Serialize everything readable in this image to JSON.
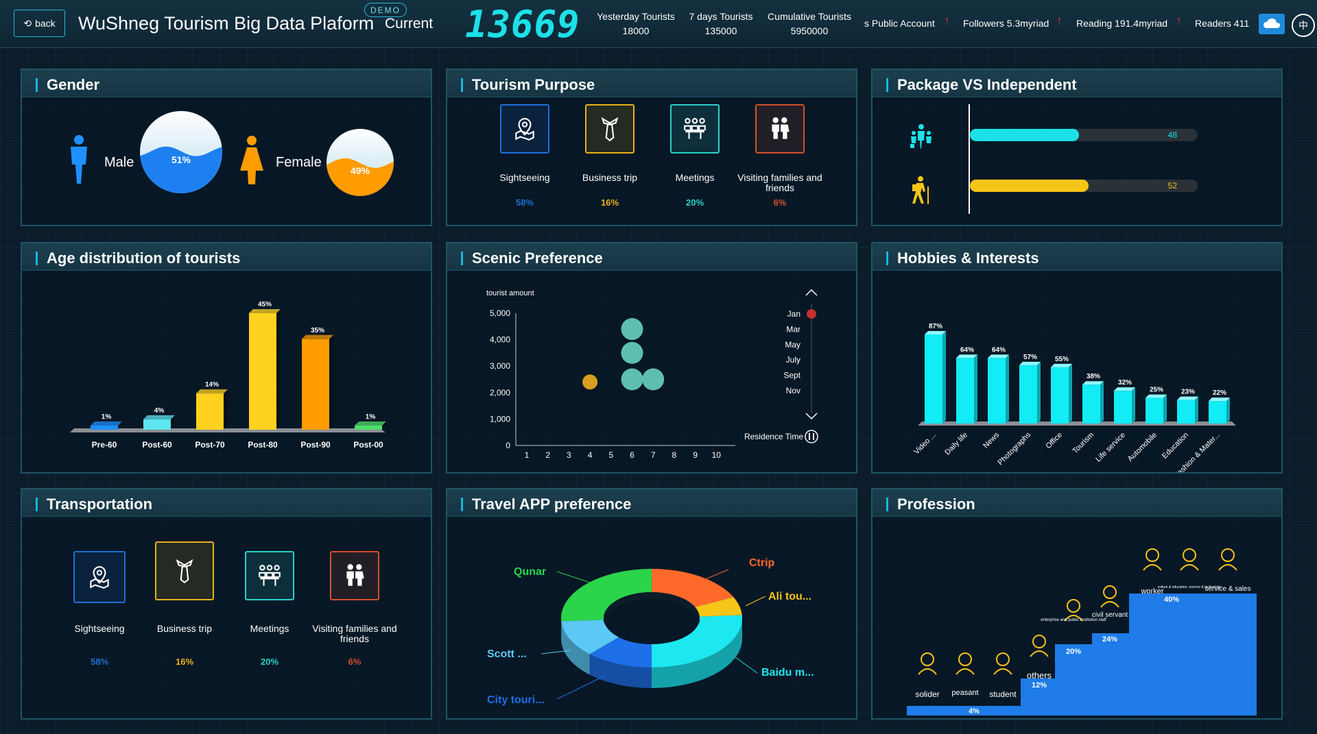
{
  "header": {
    "back_label": "back",
    "title": "WuShneg Tourism Big Data Plaform",
    "demo_label": "DEMO",
    "current_label": "Current",
    "current_value": "13669",
    "stats": [
      {
        "label": "Yesterday Tourists",
        "value": "18000"
      },
      {
        "label": "7 days Tourists",
        "value": "135000"
      },
      {
        "label": "Cumulative Tourists",
        "value": "5950000"
      }
    ],
    "social": {
      "public_account": "s Public Account",
      "followers": "Followers 5.3myriad",
      "reading": "Reading 191.4myriad",
      "readers": "Readers 411"
    },
    "lang_label": "中"
  },
  "gender": {
    "title": "Gender",
    "male_label": "Male",
    "female_label": "Female",
    "male_pct": "51%",
    "female_pct": "49%",
    "male_value": 51,
    "female_value": 49
  },
  "purpose": {
    "title": "Tourism Purpose",
    "items": [
      {
        "icon": "map-pin-icon",
        "label": "Sightseeing",
        "pct": "58%",
        "color": "#1e6fd6"
      },
      {
        "icon": "tie-icon",
        "label": "Business trip",
        "pct": "16%",
        "color": "#e8b21a"
      },
      {
        "icon": "meeting-icon",
        "label": "Meetings",
        "pct": "20%",
        "color": "#2ad1c9"
      },
      {
        "icon": "family-icon",
        "label": "Visiting families and friends",
        "pct": "6%",
        "color": "#d4502a"
      }
    ]
  },
  "package": {
    "title": "Package VS Independent",
    "items": [
      {
        "icon": "group-icon",
        "value": 48,
        "label": "48",
        "color": "#1de0e8"
      },
      {
        "icon": "hiker-icon",
        "value": 52,
        "label": "52",
        "color": "#f5c518"
      }
    ]
  },
  "age": {
    "title": "Age distribution of tourists"
  },
  "scenic": {
    "title": "Scenic Preference",
    "months": [
      "Jan",
      "Mar",
      "May",
      "July",
      "Sept",
      "Nov"
    ],
    "residence_label": "Residence Time"
  },
  "hobbies": {
    "title": "Hobbies & Interests"
  },
  "transport": {
    "title": "Transportation",
    "items": [
      {
        "icon": "map-pin-icon",
        "label": "Sightseeing",
        "pct": "58%",
        "color": "#1e6fd6"
      },
      {
        "icon": "tie-icon",
        "label": "Business trip",
        "pct": "16%",
        "color": "#e8b21a"
      },
      {
        "icon": "meeting-icon",
        "label": "Meetings",
        "pct": "20%",
        "color": "#2ad1c9"
      },
      {
        "icon": "family-icon",
        "label": "Visiting families and friends",
        "pct": "6%",
        "color": "#d4502a"
      }
    ]
  },
  "app": {
    "title": "Travel APP preference"
  },
  "profession": {
    "title": "Profession",
    "steps": [
      {
        "pct": "4%",
        "value": 4,
        "icons": [
          {
            "icon": "soldier-icon",
            "label": "solider"
          },
          {
            "icon": "peasant-icon",
            "label": "peasant"
          },
          {
            "icon": "student-icon",
            "label": "student"
          }
        ]
      },
      {
        "pct": "12%",
        "value": 12,
        "icons": [
          {
            "icon": "others-icon",
            "label": "others"
          }
        ]
      },
      {
        "pct": "20%",
        "value": 20,
        "icons": [
          {
            "icon": "building-icon",
            "label": "enterprise and public institution staff"
          }
        ]
      },
      {
        "pct": "24%",
        "value": 24,
        "icons": [
          {
            "icon": "civil-servant-icon",
            "label": "civil servant"
          }
        ]
      },
      {
        "pct": "40%",
        "value": 40,
        "icons": [
          {
            "icon": "worker-icon",
            "label": "worker"
          },
          {
            "icon": "culture-icon",
            "label": "culture & education, science & technology"
          },
          {
            "icon": "dollar-icon",
            "label": "service & sales"
          }
        ]
      }
    ]
  },
  "chart_data": [
    {
      "type": "bar",
      "name": "age",
      "categories": [
        "Pre-60",
        "Post-60",
        "Post-70",
        "Post-80",
        "Post-90",
        "Post-00"
      ],
      "values": [
        1,
        4,
        14,
        45,
        35,
        1
      ],
      "labels": [
        "1%",
        "4%",
        "14%",
        "45%",
        "35%",
        "1%"
      ],
      "colors": [
        "#1e90ff",
        "#5de6f0",
        "#ffd21f",
        "#ffd21f",
        "#ff9c00",
        "#4ee06a"
      ]
    },
    {
      "type": "scatter",
      "name": "scenic",
      "ylabel": "tourist amount",
      "x": [
        1,
        2,
        3,
        4,
        5,
        6,
        7,
        8,
        9,
        10
      ],
      "yticks": [
        "0",
        "1,000",
        "2,000",
        "3,000",
        "4,000",
        "5,000"
      ],
      "xlabels": [
        "1",
        "2",
        "3",
        "4",
        "5",
        "6",
        "7",
        "8",
        "9",
        "10"
      ],
      "ylim": [
        0,
        5000
      ],
      "points": [
        {
          "x": 4,
          "y": 2400,
          "color": "#d8a020"
        },
        {
          "x": 6,
          "y": 4400,
          "color": "#5fbfae"
        },
        {
          "x": 6,
          "y": 3500,
          "color": "#5fbfae"
        },
        {
          "x": 6,
          "y": 2500,
          "color": "#5fbfae"
        },
        {
          "x": 7,
          "y": 2500,
          "color": "#5fbfae"
        }
      ]
    },
    {
      "type": "bar",
      "name": "hobbies",
      "categories": [
        "Video ...",
        "Daily life",
        "News",
        "Photographs",
        "Office",
        "Tourism",
        "Life service",
        "Automobile",
        "Education",
        "Fashion & Mater..."
      ],
      "values": [
        87,
        64,
        64,
        57,
        55,
        38,
        32,
        25,
        23,
        22
      ],
      "labels": [
        "87%",
        "64%",
        "64%",
        "57%",
        "55%",
        "38%",
        "32%",
        "25%",
        "23%",
        "22%"
      ]
    },
    {
      "type": "pie",
      "name": "app",
      "labels": [
        "Ctrip",
        "Ali tou...",
        "Baidu m...",
        "City touri...",
        "Scott ...",
        "Qunar"
      ],
      "values": [
        18,
        6,
        26,
        12,
        12,
        26
      ],
      "colors": [
        "#ff6a2a",
        "#f5c518",
        "#1de8f0",
        "#1e6fe8",
        "#5bc8f5",
        "#2bd44a"
      ]
    }
  ]
}
